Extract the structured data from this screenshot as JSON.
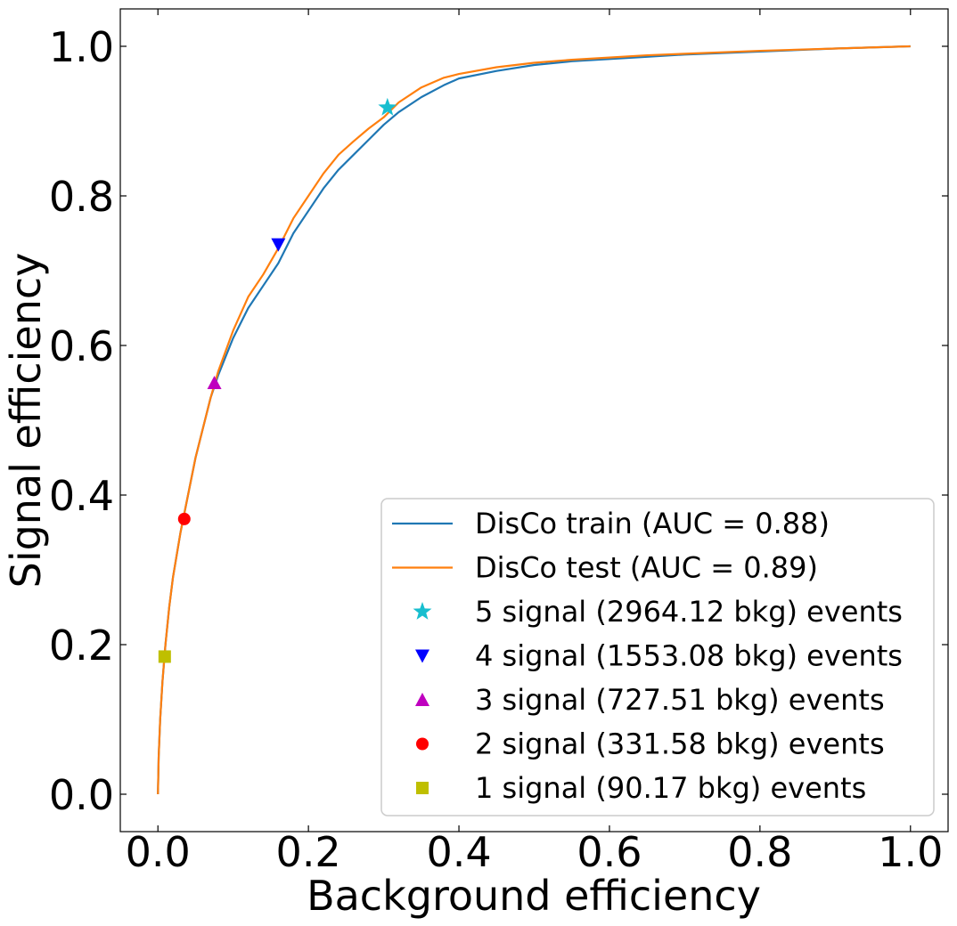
{
  "chart_data": {
    "type": "line",
    "title": "",
    "xlabel": "Background efficiency",
    "ylabel": "Signal efficiency",
    "xlim": [
      -0.05,
      1.05
    ],
    "ylim": [
      -0.05,
      1.05
    ],
    "xticks": [
      0.0,
      0.2,
      0.4,
      0.6,
      0.8,
      1.0
    ],
    "yticks": [
      0.0,
      0.2,
      0.4,
      0.6,
      0.8,
      1.0
    ],
    "xtick_labels": [
      "0.0",
      "0.2",
      "0.4",
      "0.6",
      "0.8",
      "1.0"
    ],
    "ytick_labels": [
      "0.0",
      "0.2",
      "0.4",
      "0.6",
      "0.8",
      "1.0"
    ],
    "grid": false,
    "legend_position": "lower-right",
    "series": [
      {
        "name": "DisCo train (AUC = 0.88)",
        "kind": "line",
        "color": "#1f77b4",
        "x": [
          0.0,
          0.001,
          0.003,
          0.006,
          0.01,
          0.015,
          0.02,
          0.03,
          0.04,
          0.05,
          0.06,
          0.07,
          0.08,
          0.1,
          0.12,
          0.14,
          0.16,
          0.18,
          0.2,
          0.22,
          0.24,
          0.26,
          0.28,
          0.3,
          0.32,
          0.35,
          0.38,
          0.4,
          0.45,
          0.5,
          0.55,
          0.6,
          0.65,
          0.7,
          0.8,
          0.9,
          1.0
        ],
        "y": [
          0.0,
          0.05,
          0.1,
          0.15,
          0.2,
          0.25,
          0.29,
          0.35,
          0.4,
          0.45,
          0.49,
          0.53,
          0.56,
          0.61,
          0.65,
          0.68,
          0.71,
          0.75,
          0.78,
          0.81,
          0.835,
          0.855,
          0.875,
          0.895,
          0.912,
          0.932,
          0.948,
          0.957,
          0.967,
          0.975,
          0.98,
          0.983,
          0.986,
          0.989,
          0.993,
          0.997,
          1.0
        ]
      },
      {
        "name": "DisCo test (AUC = 0.89)",
        "kind": "line",
        "color": "#ff7f0e",
        "x": [
          0.0,
          0.001,
          0.003,
          0.006,
          0.01,
          0.015,
          0.02,
          0.03,
          0.04,
          0.05,
          0.06,
          0.07,
          0.08,
          0.1,
          0.12,
          0.14,
          0.16,
          0.18,
          0.2,
          0.22,
          0.24,
          0.26,
          0.28,
          0.3,
          0.32,
          0.35,
          0.38,
          0.4,
          0.45,
          0.5,
          0.55,
          0.6,
          0.65,
          0.7,
          0.8,
          0.9,
          1.0
        ],
        "y": [
          0.0,
          0.05,
          0.1,
          0.15,
          0.2,
          0.25,
          0.29,
          0.35,
          0.4,
          0.45,
          0.49,
          0.53,
          0.565,
          0.62,
          0.665,
          0.695,
          0.73,
          0.77,
          0.8,
          0.83,
          0.855,
          0.873,
          0.89,
          0.905,
          0.925,
          0.945,
          0.958,
          0.963,
          0.972,
          0.978,
          0.982,
          0.985,
          0.988,
          0.99,
          0.994,
          0.997,
          1.0
        ]
      },
      {
        "name": "5 signal (2964.12 bkg) events",
        "kind": "marker",
        "marker": "star",
        "color": "#17becf",
        "x": [
          0.305
        ],
        "y": [
          0.918
        ]
      },
      {
        "name": "4 signal (1553.08 bkg) events",
        "kind": "marker",
        "marker": "triangle-down",
        "color": "#0000ff",
        "x": [
          0.16
        ],
        "y": [
          0.735
        ]
      },
      {
        "name": "3 signal (727.51 bkg) events",
        "kind": "marker",
        "marker": "triangle-up",
        "color": "#bf00bf",
        "x": [
          0.075
        ],
        "y": [
          0.55
        ]
      },
      {
        "name": "2 signal (331.58 bkg) events",
        "kind": "marker",
        "marker": "circle",
        "color": "#ff0000",
        "x": [
          0.035
        ],
        "y": [
          0.368
        ]
      },
      {
        "name": "1 signal (90.17 bkg) events",
        "kind": "marker",
        "marker": "square",
        "color": "#bfbf00",
        "x": [
          0.009
        ],
        "y": [
          0.184
        ]
      }
    ]
  }
}
